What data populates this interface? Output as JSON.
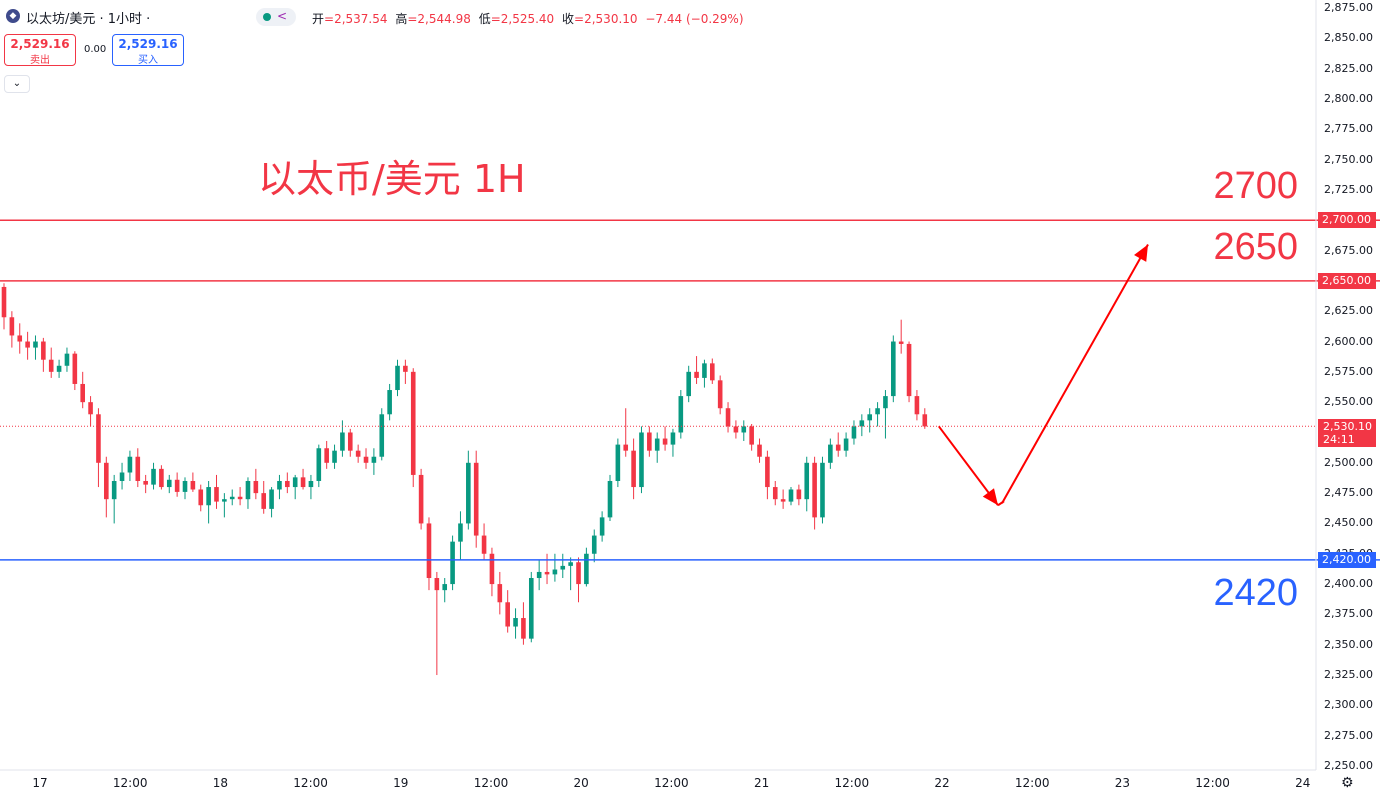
{
  "header": {
    "symbol_icon": "ethereum-icon",
    "symbol": "以太坊/美元 · 1小时 ·",
    "status_icon": "indicator-icon",
    "ohlc": [
      {
        "label": "开",
        "value": "=2,537.54"
      },
      {
        "label": "高",
        "value": "=2,544.98"
      },
      {
        "label": "低",
        "value": "=2,525.40"
      },
      {
        "label": "收",
        "value": "=2,530.10"
      },
      {
        "label": "",
        "value": "−7.44 (−0.29%)"
      }
    ]
  },
  "trade": {
    "sell_price": "2,529.16",
    "sell_label": "卖出",
    "spread": "0.00",
    "buy_price": "2,529.16",
    "buy_label": "买入"
  },
  "annotations": {
    "title": "以太币/美元 1H",
    "label_2700": "2700",
    "label_2650": "2650",
    "label_2420": "2420"
  },
  "price_axis": {
    "ticks": [
      "2,875.00",
      "2,850.00",
      "2,825.00",
      "2,800.00",
      "2,775.00",
      "2,750.00",
      "2,725.00",
      "2,700.00",
      "2,675.00",
      "2,650.00",
      "2,625.00",
      "2,600.00",
      "2,575.00",
      "2,550.00",
      "2,525.00",
      "2,500.00",
      "2,475.00",
      "2,450.00",
      "2,425.00",
      "2,400.00",
      "2,375.00",
      "2,350.00",
      "2,325.00",
      "2,300.00",
      "2,275.00",
      "2,250.00"
    ],
    "tick_values": [
      2875,
      2850,
      2825,
      2800,
      2775,
      2750,
      2725,
      2700,
      2675,
      2650,
      2625,
      2600,
      2575,
      2550,
      2525,
      2500,
      2475,
      2450,
      2425,
      2400,
      2375,
      2350,
      2325,
      2300,
      2275,
      2250
    ],
    "tag_2700": "2,700.00",
    "tag_2650": "2,650.00",
    "tag_2420": "2,420.00",
    "current_price": "2,530.10",
    "countdown": "24:11"
  },
  "time_axis": [
    "17",
    "12:00",
    "18",
    "12:00",
    "19",
    "12:00",
    "20",
    "12:00",
    "21",
    "12:00",
    "22",
    "12:00",
    "23",
    "12:00",
    "24"
  ],
  "colors": {
    "up": "#089981",
    "down": "#f23645",
    "resistance": "#f23645",
    "support": "#2962ff",
    "arrow": "#ff0000"
  },
  "chart_data": {
    "type": "candlestick",
    "timeframe": "1H",
    "y_range": [
      2250,
      2875
    ],
    "levels": [
      2700,
      2650,
      2420
    ],
    "projection": [
      2530.1,
      2465,
      2680
    ],
    "candles": [
      [
        2645,
        2648,
        2610,
        2620
      ],
      [
        2620,
        2625,
        2595,
        2605
      ],
      [
        2605,
        2615,
        2590,
        2600
      ],
      [
        2600,
        2608,
        2585,
        2595
      ],
      [
        2595,
        2605,
        2585,
        2600
      ],
      [
        2600,
        2603,
        2575,
        2585
      ],
      [
        2585,
        2595,
        2570,
        2575
      ],
      [
        2575,
        2585,
        2570,
        2580
      ],
      [
        2580,
        2595,
        2575,
        2590
      ],
      [
        2590,
        2592,
        2560,
        2565
      ],
      [
        2565,
        2575,
        2545,
        2550
      ],
      [
        2550,
        2555,
        2530,
        2540
      ],
      [
        2540,
        2545,
        2480,
        2500
      ],
      [
        2500,
        2505,
        2455,
        2470
      ],
      [
        2470,
        2490,
        2450,
        2485
      ],
      [
        2485,
        2500,
        2478,
        2492
      ],
      [
        2492,
        2510,
        2485,
        2505
      ],
      [
        2505,
        2512,
        2480,
        2485
      ],
      [
        2485,
        2490,
        2475,
        2482
      ],
      [
        2482,
        2500,
        2478,
        2495
      ],
      [
        2495,
        2498,
        2478,
        2480
      ],
      [
        2480,
        2490,
        2475,
        2486
      ],
      [
        2486,
        2492,
        2472,
        2476
      ],
      [
        2476,
        2488,
        2470,
        2485
      ],
      [
        2485,
        2492,
        2476,
        2478
      ],
      [
        2478,
        2482,
        2460,
        2465
      ],
      [
        2465,
        2485,
        2450,
        2480
      ],
      [
        2480,
        2490,
        2462,
        2468
      ],
      [
        2468,
        2475,
        2455,
        2470
      ],
      [
        2470,
        2478,
        2465,
        2472
      ],
      [
        2472,
        2480,
        2465,
        2470
      ],
      [
        2470,
        2488,
        2462,
        2485
      ],
      [
        2485,
        2495,
        2470,
        2475
      ],
      [
        2475,
        2485,
        2458,
        2462
      ],
      [
        2462,
        2480,
        2455,
        2478
      ],
      [
        2478,
        2490,
        2470,
        2485
      ],
      [
        2485,
        2492,
        2475,
        2480
      ],
      [
        2480,
        2490,
        2470,
        2488
      ],
      [
        2488,
        2495,
        2478,
        2480
      ],
      [
        2480,
        2490,
        2470,
        2485
      ],
      [
        2485,
        2515,
        2480,
        2512
      ],
      [
        2512,
        2518,
        2495,
        2500
      ],
      [
        2500,
        2515,
        2495,
        2510
      ],
      [
        2510,
        2535,
        2505,
        2525
      ],
      [
        2525,
        2528,
        2505,
        2510
      ],
      [
        2510,
        2515,
        2500,
        2505
      ],
      [
        2505,
        2512,
        2495,
        2500
      ],
      [
        2500,
        2512,
        2490,
        2505
      ],
      [
        2505,
        2545,
        2502,
        2540
      ],
      [
        2540,
        2565,
        2535,
        2560
      ],
      [
        2560,
        2585,
        2555,
        2580
      ],
      [
        2580,
        2585,
        2565,
        2575
      ],
      [
        2575,
        2578,
        2480,
        2490
      ],
      [
        2490,
        2495,
        2445,
        2450
      ],
      [
        2450,
        2455,
        2395,
        2405
      ],
      [
        2405,
        2410,
        2325,
        2395
      ],
      [
        2395,
        2405,
        2385,
        2400
      ],
      [
        2400,
        2440,
        2395,
        2435
      ],
      [
        2435,
        2460,
        2420,
        2450
      ],
      [
        2450,
        2510,
        2445,
        2500
      ],
      [
        2500,
        2510,
        2430,
        2440
      ],
      [
        2440,
        2450,
        2420,
        2425
      ],
      [
        2425,
        2430,
        2390,
        2400
      ],
      [
        2400,
        2410,
        2375,
        2385
      ],
      [
        2385,
        2395,
        2360,
        2365
      ],
      [
        2365,
        2380,
        2355,
        2372
      ],
      [
        2372,
        2385,
        2350,
        2355
      ],
      [
        2355,
        2410,
        2352,
        2405
      ],
      [
        2405,
        2420,
        2395,
        2410
      ],
      [
        2410,
        2425,
        2400,
        2408
      ],
      [
        2408,
        2425,
        2402,
        2412
      ],
      [
        2412,
        2425,
        2405,
        2415
      ],
      [
        2415,
        2422,
        2395,
        2418
      ],
      [
        2418,
        2422,
        2385,
        2400
      ],
      [
        2400,
        2430,
        2398,
        2425
      ],
      [
        2425,
        2445,
        2418,
        2440
      ],
      [
        2440,
        2460,
        2435,
        2455
      ],
      [
        2455,
        2490,
        2452,
        2485
      ],
      [
        2485,
        2520,
        2480,
        2515
      ],
      [
        2515,
        2545,
        2505,
        2510
      ],
      [
        2510,
        2520,
        2470,
        2480
      ],
      [
        2480,
        2530,
        2475,
        2525
      ],
      [
        2525,
        2530,
        2505,
        2510
      ],
      [
        2510,
        2525,
        2500,
        2520
      ],
      [
        2520,
        2530,
        2510,
        2515
      ],
      [
        2515,
        2528,
        2505,
        2525
      ],
      [
        2525,
        2560,
        2520,
        2555
      ],
      [
        2555,
        2580,
        2550,
        2575
      ],
      [
        2575,
        2588,
        2565,
        2570
      ],
      [
        2570,
        2585,
        2562,
        2582
      ],
      [
        2582,
        2586,
        2565,
        2568
      ],
      [
        2568,
        2572,
        2540,
        2545
      ],
      [
        2545,
        2550,
        2525,
        2530
      ],
      [
        2530,
        2535,
        2520,
        2525
      ],
      [
        2525,
        2535,
        2518,
        2530
      ],
      [
        2530,
        2532,
        2510,
        2515
      ],
      [
        2515,
        2520,
        2500,
        2505
      ],
      [
        2505,
        2510,
        2470,
        2480
      ],
      [
        2480,
        2485,
        2465,
        2470
      ],
      [
        2470,
        2478,
        2462,
        2468
      ],
      [
        2468,
        2480,
        2465,
        2478
      ],
      [
        2478,
        2482,
        2465,
        2470
      ],
      [
        2470,
        2505,
        2460,
        2500
      ],
      [
        2500,
        2505,
        2445,
        2455
      ],
      [
        2455,
        2505,
        2450,
        2500
      ],
      [
        2500,
        2520,
        2495,
        2515
      ],
      [
        2515,
        2525,
        2505,
        2510
      ],
      [
        2510,
        2525,
        2505,
        2520
      ],
      [
        2520,
        2535,
        2515,
        2530
      ],
      [
        2530,
        2540,
        2522,
        2535
      ],
      [
        2535,
        2545,
        2525,
        2540
      ],
      [
        2540,
        2550,
        2530,
        2545
      ],
      [
        2545,
        2560,
        2520,
        2555
      ],
      [
        2555,
        2605,
        2550,
        2600
      ],
      [
        2600,
        2618,
        2590,
        2598
      ],
      [
        2598,
        2600,
        2550,
        2555
      ],
      [
        2555,
        2560,
        2535,
        2540
      ],
      [
        2540,
        2545,
        2528,
        2530
      ]
    ]
  }
}
